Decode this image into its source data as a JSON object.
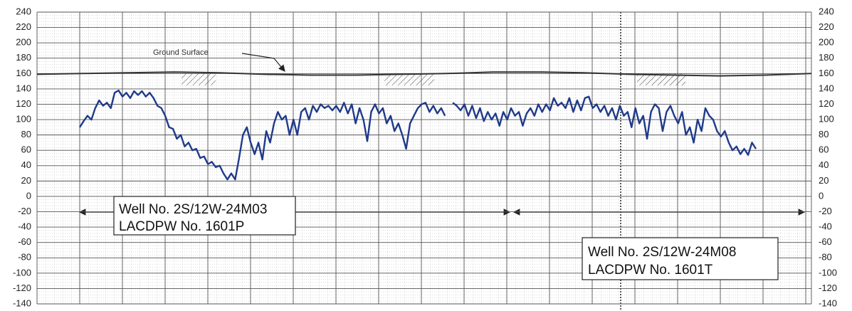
{
  "chart_data": {
    "type": "line",
    "ylim": [
      -140,
      240
    ],
    "yticks": [
      -140,
      -120,
      -100,
      -80,
      -60,
      -40,
      -20,
      0,
      20,
      40,
      60,
      80,
      100,
      120,
      140,
      160,
      180,
      200,
      220,
      240
    ],
    "grid": true,
    "series": [
      {
        "color": "#1f3a8a",
        "values": [
          90,
          98,
          105,
          100,
          115,
          125,
          118,
          122,
          115,
          135,
          138,
          130,
          135,
          128,
          137,
          132,
          137,
          130,
          135,
          128,
          118,
          115,
          105,
          90,
          88,
          75,
          80,
          65,
          70,
          60,
          62,
          50,
          52,
          42,
          45,
          38,
          40,
          30,
          22,
          30,
          22,
          50,
          80,
          90,
          70,
          55,
          70,
          48,
          85,
          70,
          95,
          110,
          100,
          105,
          80,
          100,
          80,
          110,
          115,
          100,
          118,
          110,
          120,
          115,
          118,
          112,
          118,
          110,
          122,
          108,
          120,
          95,
          115,
          100,
          72,
          110,
          120,
          108,
          115,
          95,
          105,
          85,
          95,
          80,
          62,
          95,
          105,
          115,
          120,
          122,
          110,
          118,
          108,
          115,
          105,
          null,
          122,
          118,
          112,
          120,
          105,
          118,
          102,
          115,
          98,
          110,
          100,
          108,
          92,
          110,
          100,
          115,
          105,
          110,
          92,
          108,
          115,
          105,
          120,
          110,
          120,
          112,
          128,
          118,
          122,
          115,
          128,
          110,
          125,
          112,
          128,
          130,
          115,
          120,
          110,
          118,
          105,
          115,
          100,
          118,
          105,
          110,
          90,
          115,
          95,
          105,
          75,
          110,
          120,
          115,
          85,
          110,
          118,
          105,
          95,
          110,
          80,
          90,
          70,
          100,
          85,
          115,
          105,
          100,
          85,
          78,
          85,
          70,
          60,
          65,
          55,
          62,
          54,
          70,
          62
        ]
      },
      {
        "name": "Ground Surface",
        "color": "#333333",
        "values": [
          159,
          160,
          161,
          162,
          161,
          159,
          158,
          158,
          159,
          160,
          162,
          162,
          161,
          159,
          158,
          157,
          158,
          160
        ]
      }
    ],
    "annotations": [
      "Well No. 2S/12W-24M03",
      "LACDPW No. 1601P",
      "Well No. 2S/12W-24M08",
      "LACDPW No. 1601T"
    ]
  }
}
